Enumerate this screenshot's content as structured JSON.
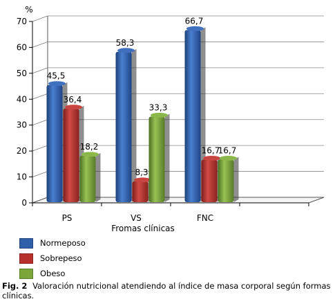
{
  "chart_data": {
    "type": "bar",
    "y_unit": "%",
    "xlabel": "Fromas clínicas",
    "ylim": [
      0,
      70
    ],
    "yticks": [
      0,
      10,
      20,
      30,
      40,
      50,
      60,
      70
    ],
    "categories": [
      "PS",
      "VS",
      "FNC"
    ],
    "series": [
      {
        "name": "Normeposo",
        "color": "#2f5fa8",
        "values": [
          45.5,
          58.3,
          66.7
        ],
        "labels": [
          "45,5",
          "58,3",
          "66,7"
        ]
      },
      {
        "name": "Sobrepeso",
        "color": "#b8302c",
        "values": [
          36.4,
          8.3,
          16.7
        ],
        "labels": [
          "36,4",
          "8,3",
          "16,7"
        ]
      },
      {
        "name": "Obeso",
        "color": "#7aa63a",
        "values": [
          18.2,
          33.3,
          16.7
        ],
        "labels": [
          "18,2",
          "33,3",
          "16,7"
        ]
      }
    ]
  },
  "caption": {
    "fig_label": "Fig. 2",
    "text": "Valoración nutricional atendiendo al índice de masa corporal según formas clínicas."
  }
}
